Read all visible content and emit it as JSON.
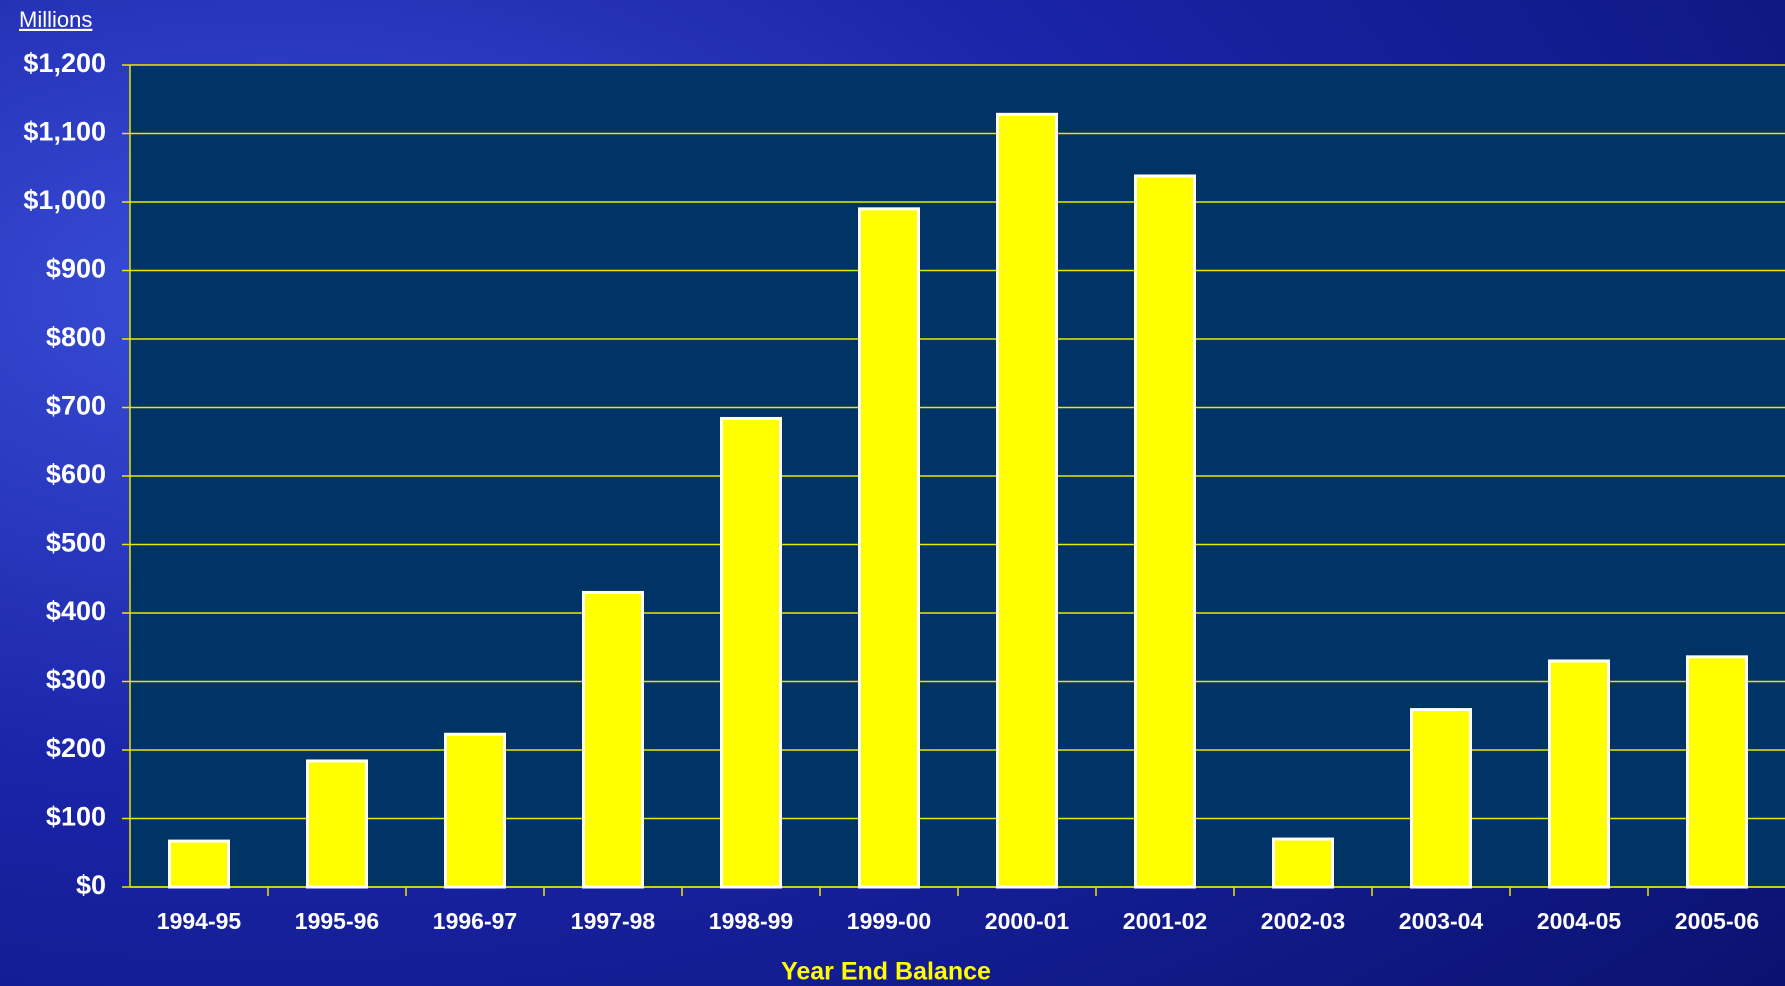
{
  "chart_data": {
    "type": "bar",
    "y_unit_label": "Millions",
    "x_axis_label": "Year End Balance",
    "categories": [
      "1994-95",
      "1995-96",
      "1996-97",
      "1997-98",
      "1998-99",
      "1999-00",
      "2000-01",
      "2001-02",
      "2002-03",
      "2003-04",
      "2004-05",
      "2005-06"
    ],
    "values": [
      67,
      184,
      223,
      430,
      684,
      990,
      1128,
      1038,
      70,
      259,
      330,
      336
    ],
    "color": "#ffff00",
    "ylim": [
      0,
      1200
    ],
    "yticks": [
      {
        "value": 0,
        "label": "$0"
      },
      {
        "value": 100,
        "label": "$100"
      },
      {
        "value": 200,
        "label": "$200"
      },
      {
        "value": 300,
        "label": "$300"
      },
      {
        "value": 400,
        "label": "$400"
      },
      {
        "value": 500,
        "label": "$500"
      },
      {
        "value": 600,
        "label": "$600"
      },
      {
        "value": 700,
        "label": "$700"
      },
      {
        "value": 800,
        "label": "$800"
      },
      {
        "value": 900,
        "label": "$900"
      },
      {
        "value": 1000,
        "label": "$1,000"
      },
      {
        "value": 1100,
        "label": "$1,100"
      },
      {
        "value": 1200,
        "label": "$1,200"
      }
    ],
    "grid": true
  }
}
